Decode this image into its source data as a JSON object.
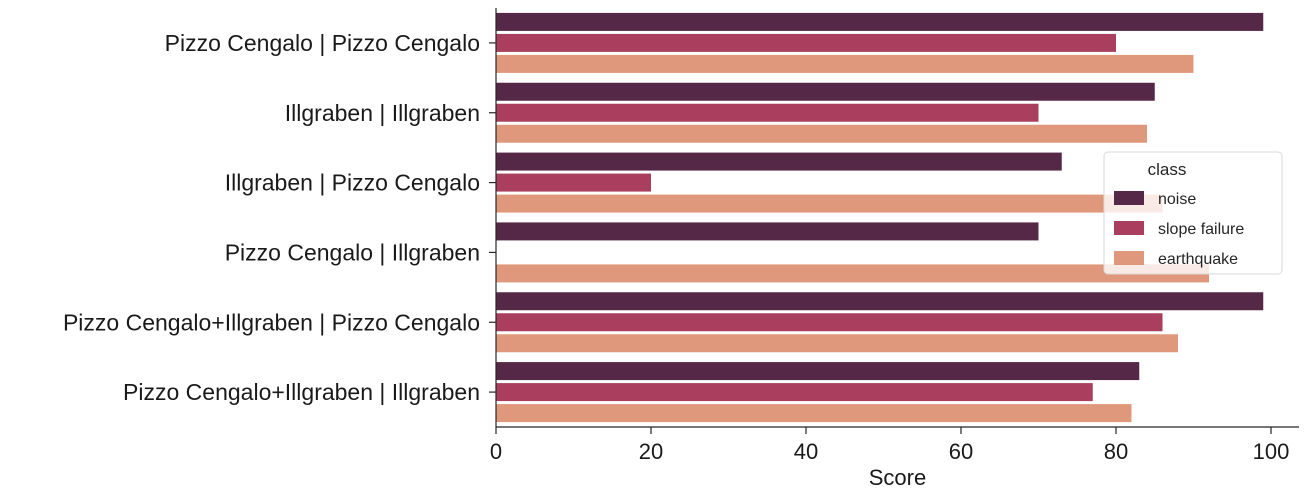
{
  "chart_data": {
    "type": "bar",
    "orientation": "horizontal",
    "categories": [
      "Pizzo Cengalo | Pizzo Cengalo",
      "Illgraben | Illgraben",
      "Illgraben | Pizzo Cengalo",
      "Pizzo Cengalo | Illgraben",
      "Pizzo Cengalo+Illgraben | Pizzo Cengalo",
      "Pizzo Cengalo+Illgraben | Illgraben"
    ],
    "series": [
      {
        "name": "noise",
        "color": "#552847",
        "values": [
          99,
          85,
          73,
          70,
          99,
          83
        ]
      },
      {
        "name": "slope failure",
        "color": "#a93e5f",
        "values": [
          80,
          70,
          20,
          0,
          86,
          77
        ]
      },
      {
        "name": "earthquake",
        "color": "#e0987c",
        "values": [
          90,
          84,
          86,
          92,
          88,
          82
        ]
      }
    ],
    "title": "",
    "xlabel": "Score",
    "ylabel": "",
    "xlim": [
      0,
      100
    ],
    "xticks": [
      0,
      20,
      40,
      60,
      80,
      100
    ],
    "grid": false,
    "legend": {
      "title": "class",
      "placement": "right"
    }
  }
}
